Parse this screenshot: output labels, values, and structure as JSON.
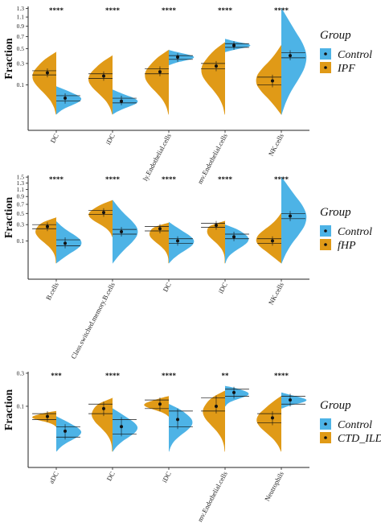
{
  "colors": {
    "control": "#4db3e6",
    "disease": "#e09a17",
    "axis": "#222222",
    "mark": "#111111"
  },
  "chart_data": [
    {
      "type": "split-violin",
      "ylabel": "Fraction",
      "y_scale": "sqrt",
      "yticks": [
        "0.1",
        "0.3",
        "0.5",
        "0.7",
        "0.9",
        "1.1",
        "1.3"
      ],
      "ytick_values": [
        0.1,
        0.3,
        0.5,
        0.7,
        0.9,
        1.1,
        1.3
      ],
      "legend": {
        "title": "Group",
        "position": "right",
        "items": [
          {
            "label": "Control",
            "color": "control"
          },
          {
            "label": "IPF",
            "color": "disease"
          }
        ]
      },
      "categories": [
        "DC",
        "iDC",
        "ly.Endothelial.cells",
        "mv.Endothelial.cells",
        "NK.cells"
      ],
      "significance": [
        "****",
        "****",
        "****",
        "****",
        "****"
      ],
      "series": [
        {
          "name": "Control",
          "median": [
            0.03,
            0.02,
            0.38,
            0.55,
            0.4
          ],
          "iqr": [
            [
              0.02,
              0.04
            ],
            [
              0.015,
              0.03
            ],
            [
              0.35,
              0.4
            ],
            [
              0.52,
              0.58
            ],
            [
              0.37,
              0.44
            ]
          ],
          "range": [
            [
              0.0,
              0.09
            ],
            [
              0.0,
              0.07
            ],
            [
              0.28,
              0.48
            ],
            [
              0.45,
              0.66
            ],
            [
              0.0,
              1.3
            ]
          ]
        },
        {
          "name": "IPF",
          "median": [
            0.2,
            0.17,
            0.21,
            0.27,
            0.13
          ],
          "iqr": [
            [
              0.18,
              0.22
            ],
            [
              0.15,
              0.19
            ],
            [
              0.19,
              0.24
            ],
            [
              0.24,
              0.3
            ],
            [
              0.1,
              0.16
            ]
          ],
          "range": [
            [
              0.0,
              0.45
            ],
            [
              0.0,
              0.4
            ],
            [
              0.0,
              0.48
            ],
            [
              0.0,
              0.6
            ],
            [
              0.0,
              0.55
            ]
          ]
        }
      ]
    },
    {
      "type": "split-violin",
      "ylabel": "Fraction",
      "y_scale": "sqrt",
      "yticks": [
        "0.1",
        "0.3",
        "0.5",
        "0.7",
        "0.9",
        "1.1",
        "1.3",
        "1.5"
      ],
      "ytick_values": [
        0.1,
        0.3,
        0.5,
        0.7,
        0.9,
        1.1,
        1.3,
        1.5
      ],
      "legend": {
        "title": "Group",
        "position": "right",
        "items": [
          {
            "label": "Control",
            "color": "control"
          },
          {
            "label": "fHP",
            "color": "disease"
          }
        ]
      },
      "categories": [
        "B.cells",
        "Class.switched.memory.B.cells",
        "DC",
        "iDC",
        "NK.cells"
      ],
      "significance": [
        "****",
        "****",
        "****",
        "****",
        "****"
      ],
      "series": [
        {
          "name": "Control",
          "median": [
            0.08,
            0.2,
            0.1,
            0.14,
            0.45
          ],
          "iqr": [
            [
              0.06,
              0.11
            ],
            [
              0.17,
              0.23
            ],
            [
              0.08,
              0.12
            ],
            [
              0.12,
              0.17
            ],
            [
              0.4,
              0.5
            ]
          ],
          "range": [
            [
              0.0,
              0.35
            ],
            [
              0.0,
              0.8
            ],
            [
              0.0,
              0.34
            ],
            [
              0.0,
              0.3
            ],
            [
              0.0,
              1.5
            ]
          ]
        },
        {
          "name": "fHP",
          "median": [
            0.27,
            0.52,
            0.24,
            0.29,
            0.1
          ],
          "iqr": [
            [
              0.24,
              0.3
            ],
            [
              0.48,
              0.56
            ],
            [
              0.21,
              0.27
            ],
            [
              0.26,
              0.32
            ],
            [
              0.08,
              0.12
            ]
          ],
          "range": [
            [
              0.0,
              0.42
            ],
            [
              0.14,
              0.8
            ],
            [
              0.0,
              0.33
            ],
            [
              0.0,
              0.36
            ],
            [
              0.0,
              0.5
            ]
          ]
        }
      ]
    },
    {
      "type": "split-violin",
      "ylabel": "Fraction",
      "y_scale": "sqrt",
      "yticks": [
        "0.1",
        "0.3"
      ],
      "ytick_values": [
        0.1,
        0.3
      ],
      "legend": {
        "title": "Group",
        "position": "right",
        "items": [
          {
            "label": "Control",
            "color": "control"
          },
          {
            "label": "CTD_ILD",
            "color": "disease"
          }
        ]
      },
      "categories": [
        "aDC",
        "DC",
        "iDC",
        "mv.Endothelial.cells",
        "Neutrophils"
      ],
      "significance": [
        "***",
        "****",
        "****",
        "**",
        "****"
      ],
      "series": [
        {
          "name": "Control",
          "median": [
            0.02,
            0.03,
            0.05,
            0.17,
            0.13
          ],
          "iqr": [
            [
              0.01,
              0.03
            ],
            [
              0.015,
              0.05
            ],
            [
              0.03,
              0.08
            ],
            [
              0.15,
              0.19
            ],
            [
              0.11,
              0.15
            ]
          ],
          "range": [
            [
              0.0,
              0.06
            ],
            [
              0.0,
              0.09
            ],
            [
              0.0,
              0.11
            ],
            [
              0.1,
              0.21
            ],
            [
              0.09,
              0.17
            ]
          ]
        },
        {
          "name": "CTD_ILD",
          "median": [
            0.06,
            0.09,
            0.11,
            0.1,
            0.055
          ],
          "iqr": [
            [
              0.05,
              0.07
            ],
            [
              0.07,
              0.11
            ],
            [
              0.09,
              0.13
            ],
            [
              0.08,
              0.14
            ],
            [
              0.04,
              0.07
            ]
          ],
          "range": [
            [
              0.03,
              0.08
            ],
            [
              0.0,
              0.14
            ],
            [
              0.06,
              0.15
            ],
            [
              0.0,
              0.18
            ],
            [
              0.0,
              0.15
            ]
          ]
        }
      ]
    }
  ]
}
